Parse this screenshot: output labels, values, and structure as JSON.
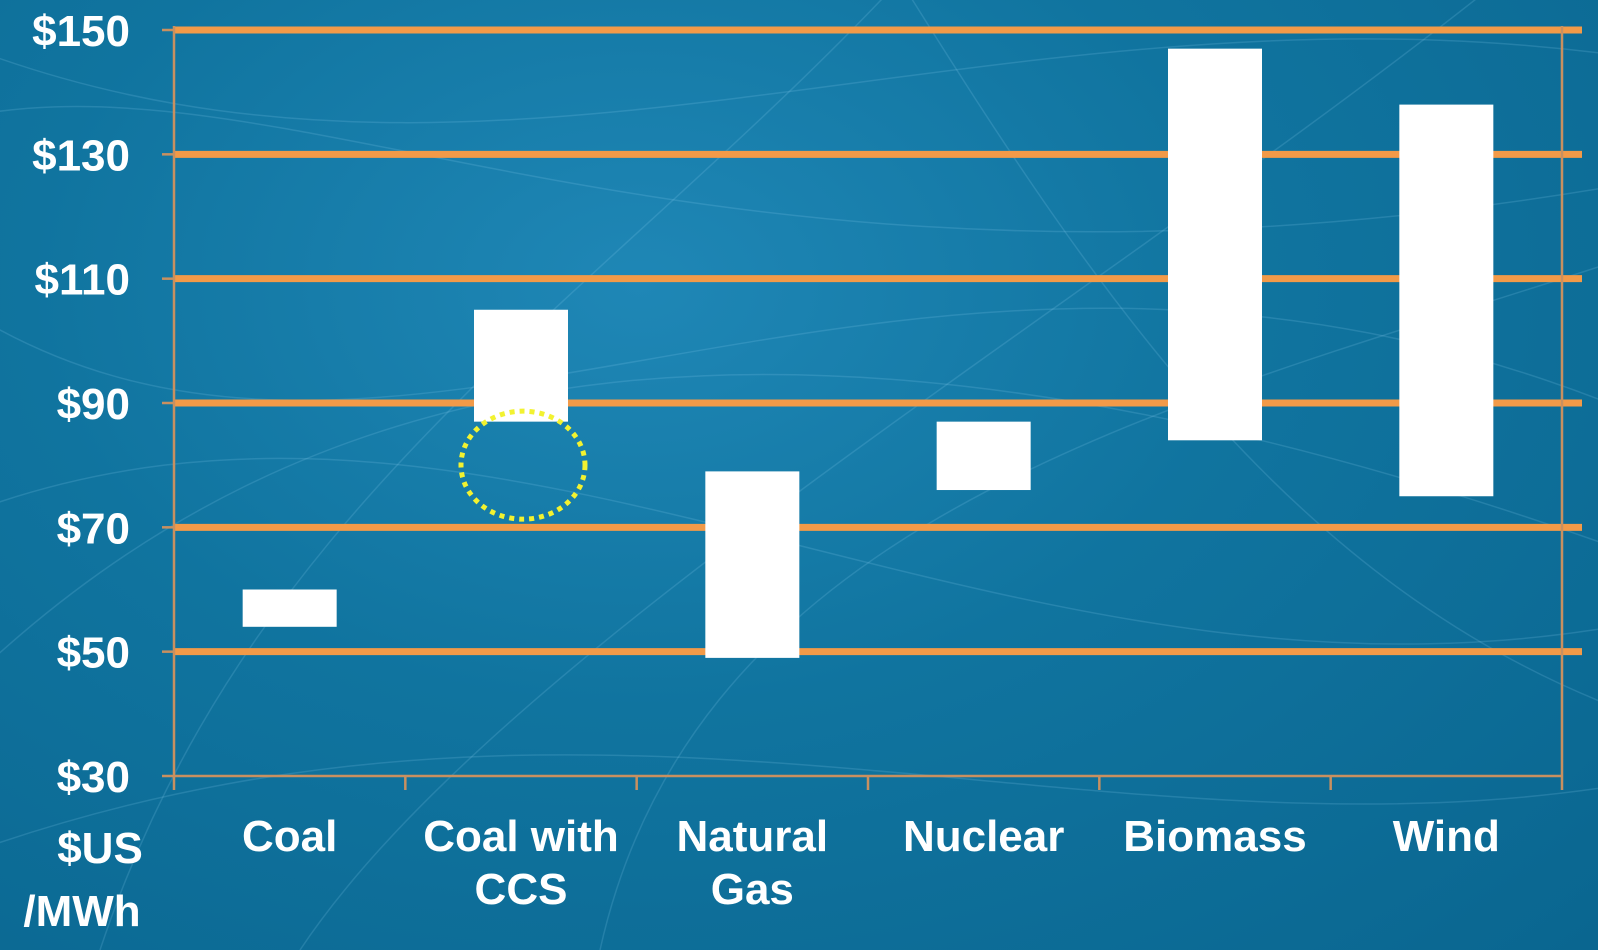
{
  "chart_data": {
    "type": "bar",
    "categories": [
      [
        "Coal"
      ],
      [
        "Coal with",
        "CCS"
      ],
      [
        "Natural",
        "Gas"
      ],
      [
        "Nuclear"
      ],
      [
        "Biomass"
      ],
      [
        "Wind"
      ]
    ],
    "series": [
      {
        "low": [
          54,
          87,
          49,
          76,
          84,
          75
        ],
        "high": [
          60,
          105,
          79,
          87,
          147,
          138
        ]
      }
    ],
    "ylabel": [
      "$US",
      "/MWh"
    ],
    "yticks": [
      "$150",
      "$130",
      "$110",
      "$90",
      "$70",
      "$50",
      "$30"
    ],
    "ytick_values": [
      150,
      130,
      110,
      90,
      70,
      50,
      30
    ],
    "ylim": [
      30,
      150
    ],
    "grid": true,
    "annotation": {
      "shape": "dotted circle",
      "category_index": 1,
      "center_value": 80,
      "color": "#f2f230"
    },
    "colors": {
      "bars": "#ffffff",
      "gridlines": "#f29a48",
      "axis": "#c89060",
      "labels": "#ffffff"
    }
  }
}
